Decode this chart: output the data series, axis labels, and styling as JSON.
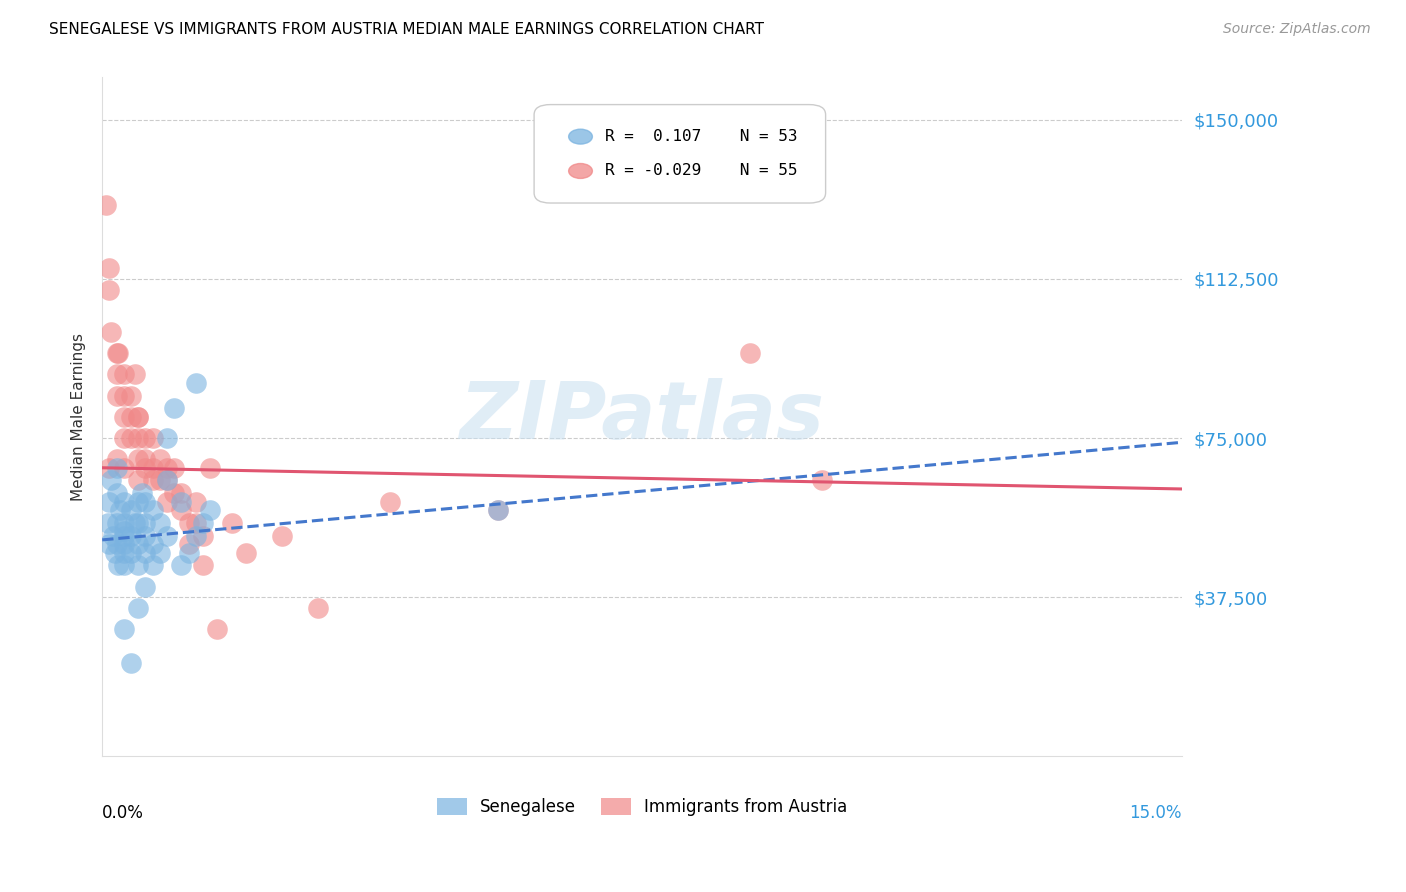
{
  "title": "SENEGALESE VS IMMIGRANTS FROM AUSTRIA MEDIAN MALE EARNINGS CORRELATION CHART",
  "source": "Source: ZipAtlas.com",
  "ylabel": "Median Male Earnings",
  "ytick_labels": [
    "$37,500",
    "$75,000",
    "$112,500",
    "$150,000"
  ],
  "ytick_values": [
    37500,
    75000,
    112500,
    150000
  ],
  "ymin": 0,
  "ymax": 160000,
  "xmin": 0.0,
  "xmax": 0.15,
  "watermark_text": "ZIPatlas",
  "blue_color": "#7ab3e0",
  "pink_color": "#f08888",
  "blue_line_color": "#4478cc",
  "pink_line_color": "#e05570",
  "blue_N": 53,
  "pink_N": 55,
  "blue_trend_x": [
    0.0,
    0.15
  ],
  "blue_trend_y": [
    51000,
    74000
  ],
  "pink_trend_x": [
    0.0,
    0.15
  ],
  "pink_trend_y": [
    68000,
    63000
  ],
  "senegalese_x": [
    0.0008,
    0.001,
    0.001,
    0.0012,
    0.0015,
    0.0018,
    0.002,
    0.002,
    0.002,
    0.002,
    0.0022,
    0.0025,
    0.003,
    0.003,
    0.003,
    0.003,
    0.003,
    0.003,
    0.003,
    0.004,
    0.004,
    0.004,
    0.0045,
    0.005,
    0.005,
    0.005,
    0.005,
    0.0055,
    0.006,
    0.006,
    0.006,
    0.006,
    0.007,
    0.007,
    0.007,
    0.008,
    0.008,
    0.009,
    0.009,
    0.01,
    0.011,
    0.011,
    0.012,
    0.013,
    0.014,
    0.015,
    0.003,
    0.004,
    0.005,
    0.006,
    0.013,
    0.055,
    0.009
  ],
  "senegalese_y": [
    55000,
    50000,
    60000,
    65000,
    52000,
    48000,
    55000,
    62000,
    50000,
    68000,
    45000,
    58000,
    52000,
    48000,
    60000,
    55000,
    50000,
    45000,
    53000,
    48000,
    52000,
    58000,
    55000,
    60000,
    45000,
    50000,
    55000,
    62000,
    55000,
    52000,
    48000,
    60000,
    58000,
    50000,
    45000,
    55000,
    48000,
    52000,
    75000,
    82000,
    60000,
    45000,
    48000,
    52000,
    55000,
    58000,
    30000,
    22000,
    35000,
    40000,
    88000,
    58000,
    65000
  ],
  "austria_x": [
    0.0005,
    0.001,
    0.001,
    0.001,
    0.0012,
    0.002,
    0.002,
    0.002,
    0.002,
    0.0022,
    0.003,
    0.003,
    0.003,
    0.003,
    0.003,
    0.004,
    0.004,
    0.004,
    0.0045,
    0.005,
    0.005,
    0.005,
    0.005,
    0.005,
    0.006,
    0.006,
    0.006,
    0.007,
    0.007,
    0.007,
    0.008,
    0.008,
    0.009,
    0.009,
    0.009,
    0.01,
    0.01,
    0.011,
    0.011,
    0.012,
    0.012,
    0.013,
    0.013,
    0.014,
    0.014,
    0.015,
    0.016,
    0.018,
    0.02,
    0.025,
    0.03,
    0.04,
    0.055,
    0.09,
    0.1
  ],
  "austria_y": [
    130000,
    115000,
    110000,
    68000,
    100000,
    95000,
    90000,
    85000,
    70000,
    95000,
    90000,
    85000,
    80000,
    75000,
    68000,
    85000,
    80000,
    75000,
    90000,
    80000,
    75000,
    70000,
    65000,
    80000,
    75000,
    70000,
    68000,
    75000,
    68000,
    65000,
    70000,
    65000,
    68000,
    65000,
    60000,
    68000,
    62000,
    62000,
    58000,
    55000,
    50000,
    60000,
    55000,
    45000,
    52000,
    68000,
    30000,
    55000,
    48000,
    52000,
    35000,
    60000,
    58000,
    95000,
    65000
  ]
}
